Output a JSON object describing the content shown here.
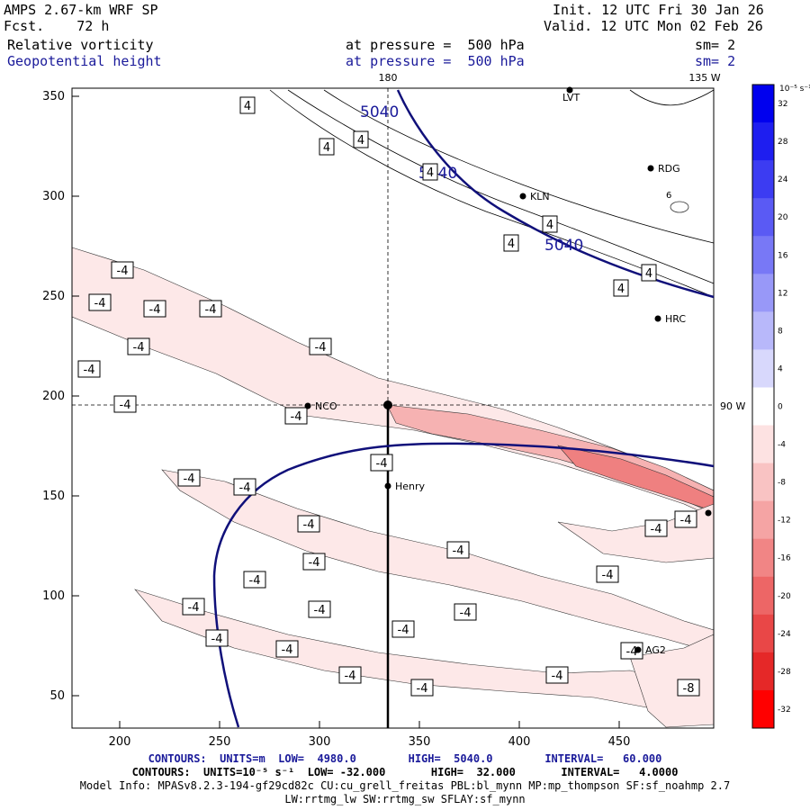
{
  "header": {
    "model": "AMPS 2.67-km WRF SP",
    "forecast": "Fcst.    72 h",
    "init": "Init. 12 UTC Fri 30 Jan 26",
    "valid": "Valid. 12 UTC Mon 02 Feb 26",
    "field1": "Relative vorticity",
    "field2": "Geopotential height",
    "pressure1": "at pressure =  500 hPa",
    "pressure2": "at pressure =  500 hPa",
    "sm1": "sm= 2",
    "sm2": "sm= 2"
  },
  "map_labels": {
    "lon_180": "180",
    "lon_135w": "135 W",
    "lat_90w": "90 W"
  },
  "axes": {
    "y_ticks": [
      "350",
      "300",
      "250",
      "200",
      "150",
      "100",
      "50"
    ],
    "x_ticks": [
      "200",
      "250",
      "300",
      "350",
      "400",
      "450"
    ]
  },
  "stations": [
    {
      "name": "LVT"
    },
    {
      "name": "RDG"
    },
    {
      "name": "KLN"
    },
    {
      "name": "HRC"
    },
    {
      "name": "NCO"
    },
    {
      "name": "Henry"
    },
    {
      "name": "AG2"
    }
  ],
  "contour_labels": {
    "height": [
      "5040",
      "5040",
      "5040"
    ],
    "vort_pos": "4",
    "vort_neg": "-4",
    "vort_neg8": "-8",
    "small6": "6"
  },
  "colorbar": {
    "units": "10⁻⁵ s⁻¹",
    "labels": [
      "32",
      "28",
      "24",
      "20",
      "16",
      "12",
      "8",
      "4",
      "0",
      "-4",
      "-8",
      "-12",
      "-16",
      "-20",
      "-24",
      "-28",
      "-32"
    ],
    "colors": [
      "#0000ee",
      "#1e1ef0",
      "#3c3cf2",
      "#5a5af4",
      "#7878f6",
      "#9898f8",
      "#b8b8fa",
      "#d8d8fc",
      "#ffffff",
      "#fde2e2",
      "#f9c3c3",
      "#f5a4a4",
      "#f18585",
      "#ed6666",
      "#e94747",
      "#e52828",
      "#ff0000"
    ]
  },
  "footer": {
    "line1": "CONTOURS:  UNITS=m  LOW=  4980.0        HIGH=  5040.0        INTERVAL=   60.000",
    "line2": "CONTOURS:  UNITS=10⁻⁵ s⁻¹  LOW= -32.000       HIGH=  32.000       INTERVAL=   4.0000",
    "line3": "Model Info: MPASv8.2.3-194-gf29cd82c CU:cu_grell_freitas PBL:bl_mynn MP:mp_thompson SF:sf_noahmp 2.7",
    "line4": "LW:rrtmg_lw SW:rrtmg_sw SFLAY:sf_mynn"
  }
}
